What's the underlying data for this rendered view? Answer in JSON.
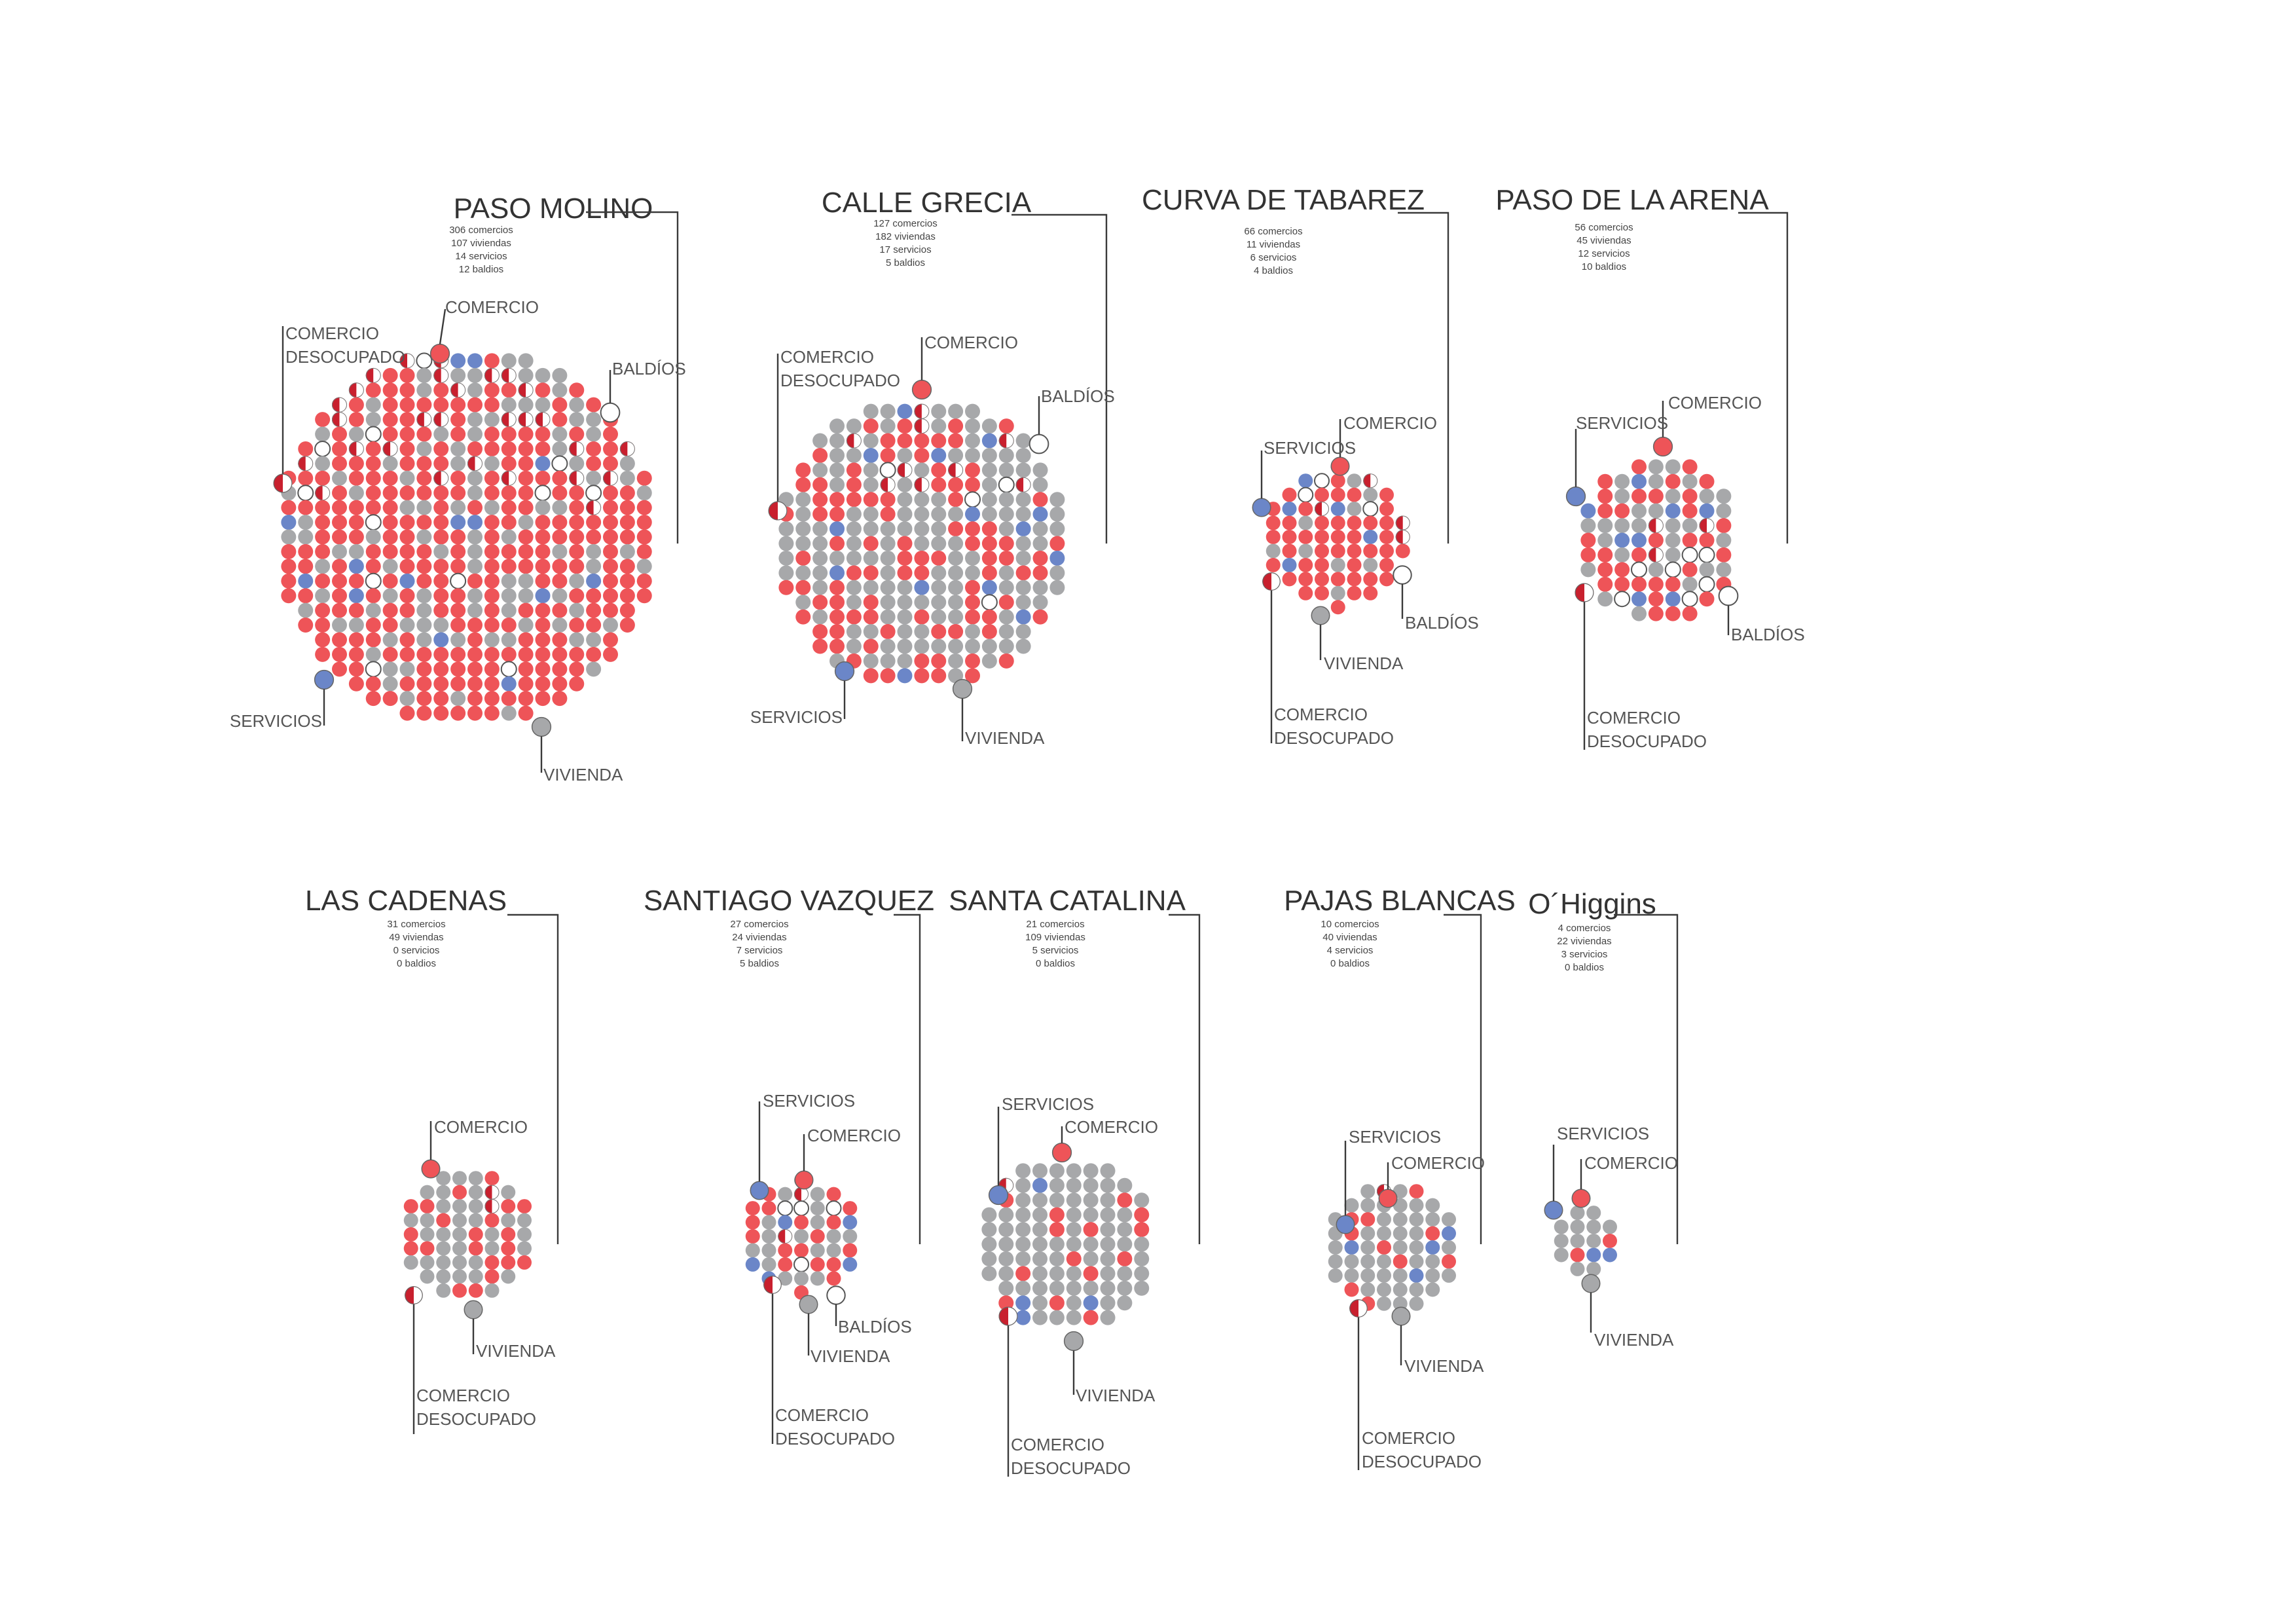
{
  "colors": {
    "comercio": "#EE5458",
    "vivienda": "#A7A8AA",
    "servicios": "#6B86C8",
    "baldios": "#FFFFFF",
    "desocupado_half": "#C8202E",
    "line": "#3A3A3A"
  },
  "legend_labels": {
    "comercio": "COMERCIO",
    "vivienda": "VIVIENDA",
    "servicios": "SERVICIOS",
    "baldios": "BALDÍOS",
    "desocupado_1": "COMERCIO",
    "desocupado_2": "DESOCUPADO"
  },
  "chart_data": [
    {
      "type": "dot-cluster",
      "title": "PASO MOLINO",
      "stats": [
        "306 comercios",
        "107 viviendas",
        "14 servicios",
        "12 baldios"
      ],
      "values": {
        "comercio": 306,
        "vivienda": 107,
        "servicios": 14,
        "baldios": 12
      }
    },
    {
      "type": "dot-cluster",
      "title": "CALLE GRECIA",
      "stats": [
        "127 comercios",
        "182 viviendas",
        "17 servicios",
        "5 baldios"
      ],
      "values": {
        "comercio": 127,
        "vivienda": 182,
        "servicios": 17,
        "baldios": 5
      }
    },
    {
      "type": "dot-cluster",
      "title": "CURVA DE TABAREZ",
      "stats": [
        "66 comercios",
        "11 viviendas",
        "6 servicios",
        "4 baldios"
      ],
      "values": {
        "comercio": 66,
        "vivienda": 11,
        "servicios": 6,
        "baldios": 4
      }
    },
    {
      "type": "dot-cluster",
      "title": "PASO DE LA ARENA",
      "stats": [
        "56 comercios",
        "45 viviendas",
        "12 servicios",
        "10 baldios"
      ],
      "values": {
        "comercio": 56,
        "vivienda": 45,
        "servicios": 12,
        "baldios": 10
      }
    },
    {
      "type": "dot-cluster",
      "title": "LAS CADENAS",
      "stats": [
        "31 comercios",
        "49 viviendas",
        "0 servicios",
        "0 baldios"
      ],
      "values": {
        "comercio": 31,
        "vivienda": 49,
        "servicios": 0,
        "baldios": 0
      }
    },
    {
      "type": "dot-cluster",
      "title": "SANTIAGO VAZQUEZ",
      "stats": [
        "27 comercios",
        "24 viviendas",
        "7 servicios",
        "5 baldios"
      ],
      "values": {
        "comercio": 27,
        "vivienda": 24,
        "servicios": 7,
        "baldios": 5
      }
    },
    {
      "type": "dot-cluster",
      "title": "SANTA CATALINA",
      "stats": [
        "21 comercios",
        "109 viviendas",
        "5 servicios",
        "0 baldios"
      ],
      "values": {
        "comercio": 21,
        "vivienda": 109,
        "servicios": 5,
        "baldios": 0
      }
    },
    {
      "type": "dot-cluster",
      "title": "PAJAS BLANCAS",
      "stats": [
        "10 comercios",
        "40 viviendas",
        "4 servicios",
        "0 baldios"
      ],
      "values": {
        "comercio": 10,
        "vivienda": 40,
        "servicios": 4,
        "baldios": 0
      }
    },
    {
      "type": "dot-cluster",
      "title": "O´Higgins",
      "stats": [
        "4 comercios",
        "22 viviendas",
        "3 servicios",
        "0 baldios"
      ],
      "values": {
        "comercio": 4,
        "vivienda": 22,
        "servicios": 3,
        "baldios": 0
      }
    }
  ]
}
